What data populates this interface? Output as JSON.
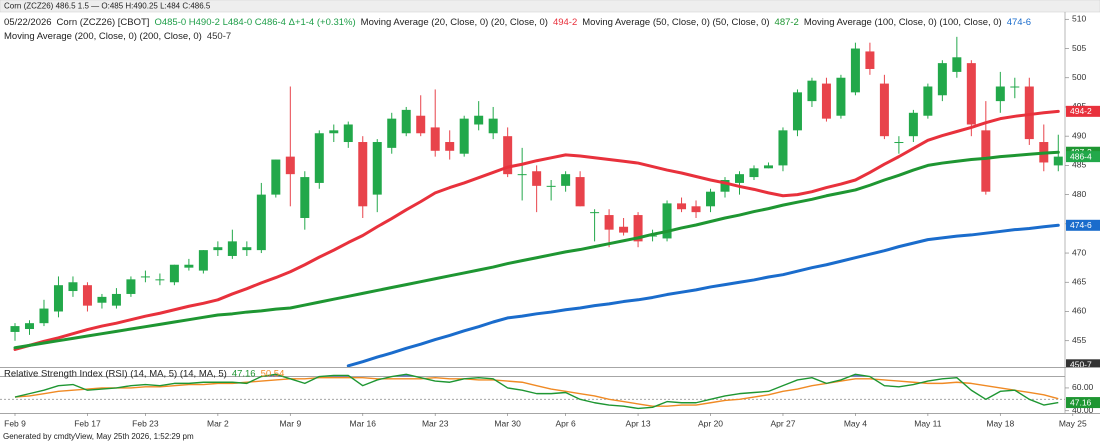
{
  "window_title": "Corn (ZCZ26) 486.5 1.5 — O:485 H:490.25 L:484 C:486.5",
  "footer": "Generated by cmdtyView, May 25th 2026, 1:52:29 pm",
  "chart_data": [
    {
      "type": "candlestick",
      "legend_date": "05/22/2026",
      "instrument": "Corn (ZCZ26) [CBOT]",
      "ohlc_text": "O485-0 H490-2 L484-0 C486-4 Δ+1-4 (+0.31%)",
      "ohlc_color": "#1e9e48",
      "up_color": "#22a84a",
      "down_color": "#e8434b",
      "price_label": "486-4",
      "categories": [
        "Feb 9",
        null,
        null,
        null,
        null,
        "Feb 17",
        null,
        null,
        null,
        "Feb 23",
        null,
        null,
        null,
        null,
        "Mar 2",
        null,
        null,
        null,
        null,
        "Mar 9",
        null,
        null,
        null,
        null,
        "Mar 16",
        null,
        null,
        null,
        null,
        "Mar 23",
        null,
        null,
        null,
        null,
        "Mar 30",
        null,
        null,
        null,
        "Apr 6",
        null,
        null,
        null,
        null,
        "Apr 13",
        null,
        null,
        null,
        null,
        "Apr 20",
        null,
        null,
        null,
        null,
        "Apr 27",
        null,
        null,
        null,
        null,
        "May 4",
        null,
        null,
        null,
        null,
        "May 11",
        null,
        null,
        null,
        null,
        "May 18",
        null,
        null,
        null,
        null,
        "May 25"
      ],
      "open": [
        456.5,
        457,
        458,
        460,
        463.5,
        464.5,
        461.5,
        461,
        463,
        466,
        465.5,
        465,
        467.5,
        467,
        470.5,
        469.5,
        470.5,
        470.5,
        480,
        486.5,
        476,
        482,
        490.5,
        489,
        489,
        480,
        488,
        490.5,
        493.5,
        491.5,
        489,
        487,
        492,
        490.5,
        490,
        483.5,
        484,
        481.5,
        481.5,
        483,
        477,
        476.5,
        474.5,
        476.5,
        473,
        472.5,
        478.5,
        478,
        478,
        480.5,
        482,
        483,
        484.5,
        485,
        491,
        496,
        499,
        493.5,
        497.5,
        504.5,
        499,
        489,
        490,
        493.5,
        497,
        501,
        502.5,
        491,
        496,
        498.5,
        498.5,
        489,
        485,
        null
      ],
      "high": [
        458,
        458.5,
        462,
        466,
        466,
        465,
        463,
        464,
        466,
        467,
        466.5,
        468,
        469,
        470.5,
        472,
        474,
        472,
        482,
        486,
        498.5,
        484,
        491,
        492,
        492.5,
        490,
        489.5,
        494,
        495,
        497,
        498,
        491,
        493.5,
        496,
        495,
        491.5,
        488,
        485,
        482.5,
        484,
        484,
        477.5,
        477.5,
        476,
        477,
        474,
        479,
        479.5,
        479,
        481,
        483,
        484,
        485,
        485.5,
        491.5,
        498,
        500,
        500,
        500.5,
        506,
        506,
        500.5,
        490,
        494.5,
        499,
        503,
        507,
        503,
        496,
        501,
        500,
        500,
        492,
        490.25,
        null
      ],
      "low": [
        455,
        456,
        457.5,
        459,
        462.5,
        460,
        460.5,
        460.5,
        462.5,
        465,
        464.5,
        464.5,
        467,
        466.5,
        469.5,
        469,
        469.5,
        470,
        479.5,
        478,
        474,
        481,
        489,
        488,
        476,
        477,
        487,
        490,
        490,
        486.5,
        486,
        486.5,
        491,
        489.5,
        483,
        479,
        477,
        479,
        480.5,
        478,
        472,
        471,
        473,
        471,
        472,
        472,
        477,
        476,
        477,
        479.5,
        480,
        482.5,
        484.5,
        484,
        490,
        495,
        492.5,
        493,
        497,
        500.5,
        489.5,
        487,
        489,
        493,
        496,
        500,
        490,
        480,
        494,
        496.5,
        488.5,
        484,
        484,
        null
      ],
      "close": [
        457.5,
        458,
        460.5,
        464.5,
        465,
        461,
        462.5,
        463,
        465.5,
        466,
        465.5,
        468,
        468,
        470.5,
        471,
        472,
        471,
        480,
        486,
        483.5,
        483,
        490.5,
        491,
        492,
        478,
        489,
        493,
        494.5,
        490.5,
        487.5,
        487.5,
        493,
        493.5,
        493,
        483.5,
        483.5,
        481.5,
        481.5,
        483.5,
        478,
        477,
        474,
        473.5,
        472,
        473,
        478.5,
        477.5,
        477,
        480.5,
        482.5,
        483.5,
        484.5,
        485,
        491,
        497.5,
        499.5,
        493,
        500,
        505,
        501.5,
        490,
        489,
        494,
        498.5,
        502.5,
        503.5,
        492,
        480.5,
        498.5,
        498.5,
        489.5,
        485.5,
        486.5,
        null
      ],
      "ylim": [
        450.5,
        511.25
      ],
      "yticks": [
        455,
        460,
        465,
        470,
        475,
        480,
        485,
        490,
        495,
        500,
        505,
        510
      ],
      "series": [
        {
          "name": "Moving Average (20, Close, 0) (20, Close, 0)",
          "color": "#e8313c",
          "legend_value": "494-2",
          "values": [
            453.5,
            454.2,
            454.9,
            455.5,
            456.2,
            456.9,
            457.5,
            458,
            458.6,
            459.2,
            459.7,
            460.3,
            460.9,
            461.4,
            462,
            463,
            463.9,
            464.9,
            465.8,
            466.8,
            468,
            469.3,
            470.5,
            471.8,
            473,
            474.5,
            475.9,
            477.4,
            478.8,
            480.3,
            481.2,
            482,
            482.9,
            483.8,
            484.7,
            485.2,
            485.8,
            486.3,
            486.8,
            486.6,
            486.3,
            486,
            485.7,
            485.4,
            484.8,
            484.2,
            483.7,
            483.1,
            482.5,
            482,
            481.4,
            480.9,
            480.3,
            479.8,
            480,
            480.5,
            481.2,
            481.8,
            482.5,
            483.8,
            485.2,
            486.5,
            487.9,
            489.3,
            490.1,
            490.8,
            491.5,
            492.3,
            493,
            493.4,
            493.7,
            494,
            494.25,
            null
          ]
        },
        {
          "name": "Moving Average (50, Close, 0) (50, Close, 0)",
          "color": "#1e9632",
          "legend_value": "487-2",
          "values": [
            453.8,
            454.2,
            454.6,
            455,
            455.4,
            455.8,
            456.2,
            456.6,
            457,
            457.4,
            457.8,
            458.2,
            458.6,
            459,
            459.4,
            459.6,
            459.9,
            460.1,
            460.4,
            460.6,
            461.1,
            461.6,
            462.1,
            462.6,
            463.1,
            463.6,
            464.1,
            464.6,
            465.1,
            465.6,
            466.1,
            466.6,
            467.1,
            467.6,
            468.2,
            468.7,
            469.2,
            469.7,
            470.2,
            470.6,
            471.1,
            471.6,
            472.1,
            472.6,
            473.2,
            473.7,
            474.3,
            474.8,
            475.4,
            476,
            476.5,
            477.1,
            477.6,
            478.2,
            478.7,
            479.2,
            479.8,
            480.3,
            480.8,
            481.6,
            482.5,
            483.3,
            484.2,
            485,
            485.4,
            485.7,
            486,
            486.2,
            486.5,
            486.7,
            486.9,
            487.1,
            487.25,
            null
          ]
        },
        {
          "name": "Moving Average (100, Close, 0) (100, Close, 0)",
          "color": "#1a6ccc",
          "legend_value": "474-6",
          "values": [
            null,
            null,
            null,
            null,
            null,
            null,
            null,
            null,
            null,
            null,
            null,
            null,
            null,
            null,
            null,
            null,
            null,
            null,
            null,
            null,
            null,
            null,
            null,
            450.7,
            451.4,
            452.2,
            452.9,
            453.7,
            454.4,
            455.2,
            455.9,
            456.7,
            457.4,
            458.2,
            458.9,
            459.2,
            459.6,
            459.9,
            460.3,
            460.6,
            461,
            461.3,
            461.7,
            462,
            462.4,
            462.9,
            463.3,
            463.7,
            464.2,
            464.6,
            465,
            465.4,
            465.9,
            466.3,
            466.9,
            467.5,
            468,
            468.6,
            469.2,
            469.8,
            470.4,
            471.1,
            471.7,
            472.3,
            472.6,
            472.9,
            473.1,
            473.4,
            473.7,
            474,
            474.2,
            474.5,
            474.75,
            null
          ]
        },
        {
          "name": "Moving Average (200, Close, 0) (200, Close, 0)",
          "color": "#333333",
          "legend_value": "450-7",
          "last": 450.875
        }
      ]
    },
    {
      "type": "line",
      "title": "Relative Strength Index (RSI) (14, MA, 5) (14, MA, 5)",
      "ylim": [
        38,
        77.5
      ],
      "yticks": [
        {
          "value": 60,
          "label": "60.00"
        },
        {
          "value": 40,
          "label": "40.00"
        }
      ],
      "levels": [
        70,
        50
      ],
      "overbought_color": "#3a4fd0",
      "series": [
        {
          "name": "RSI",
          "color": "#1e9632",
          "legend_value": "47.16",
          "axis_tag": true,
          "values": [
            52,
            55,
            58,
            62,
            63,
            58,
            59,
            60,
            62,
            63,
            62,
            64,
            64,
            65,
            65,
            65,
            64,
            70,
            72,
            68,
            64,
            70,
            71,
            71,
            62,
            67,
            70,
            72,
            69,
            66,
            65,
            68,
            69,
            68,
            60,
            58,
            55,
            55,
            56,
            50,
            47,
            45,
            44,
            42,
            43,
            48,
            47,
            47,
            50,
            53,
            55,
            56,
            57,
            62,
            67,
            69,
            64,
            67,
            72,
            70,
            62,
            61,
            63,
            66,
            68,
            69,
            58,
            50,
            57,
            58,
            50,
            45,
            47.16,
            null
          ]
        },
        {
          "name": "MA",
          "color": "#f08a24",
          "legend_value": "50.54",
          "axis_tag": false,
          "values": [
            52,
            53,
            55,
            57,
            58,
            59,
            60,
            60,
            60,
            61,
            61,
            62,
            63,
            63,
            64,
            64,
            65,
            66,
            67,
            68,
            68,
            69,
            69,
            69,
            69,
            68,
            68,
            68,
            68,
            69,
            68,
            68,
            67,
            67,
            66,
            65,
            62,
            59,
            57,
            55,
            53,
            50,
            48,
            46,
            44,
            44,
            45,
            45,
            47,
            49,
            50,
            52,
            54,
            57,
            59,
            62,
            64,
            66,
            68,
            68,
            67,
            66,
            65,
            64,
            64,
            65,
            64,
            62,
            60,
            58,
            56,
            54,
            50.54,
            null
          ]
        }
      ]
    }
  ]
}
